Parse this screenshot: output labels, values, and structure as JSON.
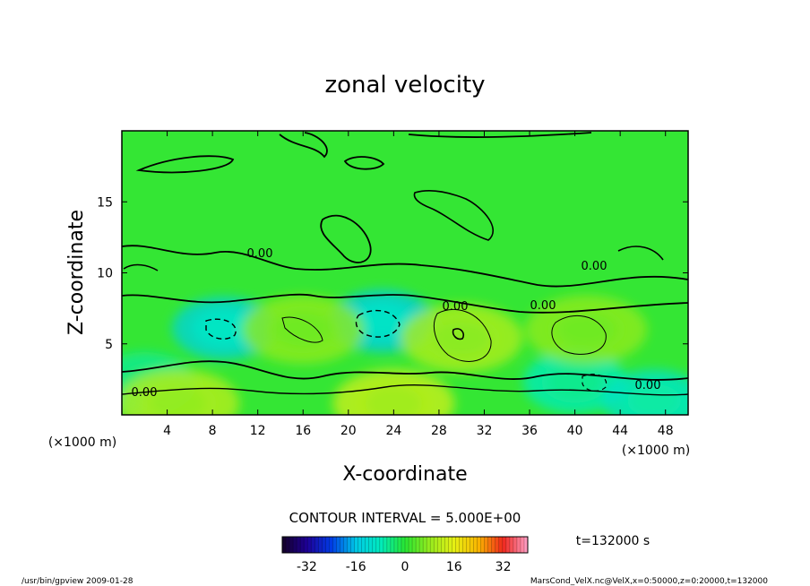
{
  "chart_data": {
    "type": "heatmap",
    "title": "zonal velocity",
    "xlabel": "X-coordinate",
    "ylabel": "Z-coordinate",
    "x_unit_note": "(×1000 m)",
    "y_unit_note": "(×1000 m)",
    "xlim": [
      0,
      50
    ],
    "ylim": [
      0,
      20
    ],
    "x_ticks": [
      "4",
      "8",
      "12",
      "16",
      "20",
      "24",
      "28",
      "32",
      "36",
      "40",
      "44",
      "48"
    ],
    "x_tick_values": [
      4,
      8,
      12,
      16,
      20,
      24,
      28,
      32,
      36,
      40,
      44,
      48
    ],
    "y_ticks": [
      "5",
      "10",
      "15"
    ],
    "y_tick_values": [
      5,
      10,
      15
    ],
    "contour_interval_text": "CONTOUR INTERVAL = 5.000E+00",
    "contour_labels": [
      "0.00",
      "0.00",
      "0.00",
      "0.00",
      "0.00",
      "0.00"
    ],
    "colorbar": {
      "range": [
        -40,
        40
      ],
      "ticks": [
        "-32",
        "-16",
        "0",
        "16",
        "32"
      ],
      "tick_values": [
        -32,
        -16,
        0,
        16,
        32
      ]
    },
    "field_features": [
      {
        "kind": "min",
        "x": 9,
        "z": 6.1,
        "value": -14
      },
      {
        "kind": "min",
        "x": 23,
        "z": 6.6,
        "value": -15
      },
      {
        "kind": "min",
        "x": 2,
        "z": 2.2,
        "value": -6
      },
      {
        "kind": "min",
        "x": 40,
        "z": 2.3,
        "value": -8
      },
      {
        "kind": "min",
        "x": 47,
        "z": 1.0,
        "value": -10
      },
      {
        "kind": "max",
        "x": 5,
        "z": 0.8,
        "value": 12
      },
      {
        "kind": "max",
        "x": 24,
        "z": 0.8,
        "value": 14
      },
      {
        "kind": "max",
        "x": 30,
        "z": 5.4,
        "value": 11
      },
      {
        "kind": "max",
        "x": 16,
        "z": 6.0,
        "value": 8
      },
      {
        "kind": "max",
        "x": 41,
        "z": 6.0,
        "value": 8
      }
    ],
    "time_label": "t=132000 s"
  },
  "footer": {
    "left": "/usr/bin/gpview  2009-01-28",
    "right": "MarsCond_VelX.nc@VelX,x=0:50000,z=0:20000,t=132000"
  }
}
